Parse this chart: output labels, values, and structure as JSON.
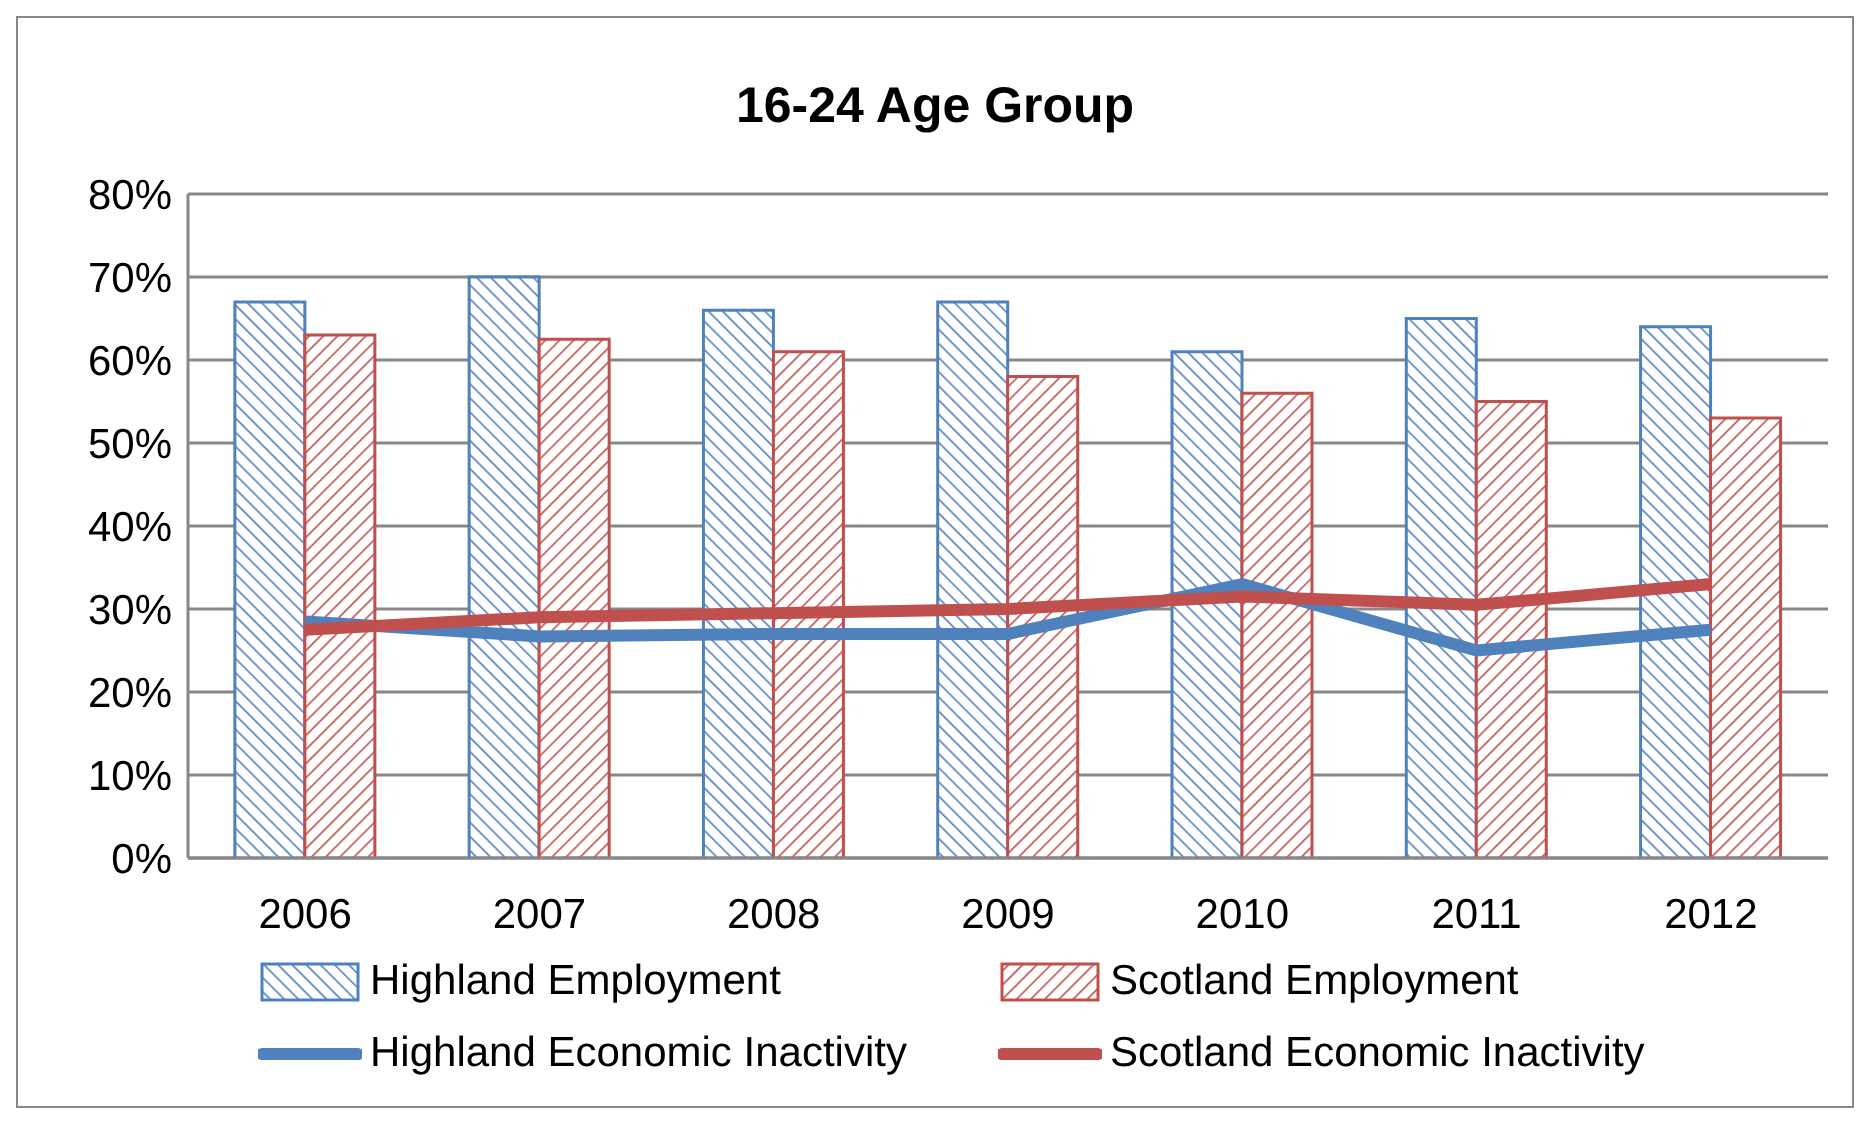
{
  "chart_data": {
    "type": "bar",
    "title": "16-24 Age Group",
    "categories": [
      "2006",
      "2007",
      "2008",
      "2009",
      "2010",
      "2011",
      "2012"
    ],
    "ylim": [
      0,
      0.8
    ],
    "yticks": [
      {
        "value": 0,
        "label": "0%"
      },
      {
        "value": 0.1,
        "label": "10%"
      },
      {
        "value": 0.2,
        "label": "20%"
      },
      {
        "value": 0.3,
        "label": "30%"
      },
      {
        "value": 0.4,
        "label": "40%"
      },
      {
        "value": 0.5,
        "label": "50%"
      },
      {
        "value": 0.6,
        "label": "60%"
      },
      {
        "value": 0.7,
        "label": "70%"
      },
      {
        "value": 0.8,
        "label": "80%"
      }
    ],
    "grid": "y",
    "legend": "bottom",
    "series": [
      {
        "name": "Highland Employment",
        "color": "#4f81bd",
        "values": [
          0.67,
          0.7,
          0.66,
          0.67,
          0.61,
          0.65,
          0.64
        ]
      },
      {
        "name": "Scotland Employment",
        "color": "#c0504d",
        "values": [
          0.63,
          0.625,
          0.61,
          0.58,
          0.56,
          0.55,
          0.53
        ]
      },
      {
        "name": "Highland Economic Inactivity",
        "type": "line",
        "color": "#4f81bd",
        "values": [
          0.285,
          0.267,
          0.27,
          0.27,
          0.33,
          0.25,
          0.275
        ]
      },
      {
        "name": "Scotland Economic Inactivity",
        "type": "line",
        "color": "#c0504d",
        "values": [
          0.275,
          0.29,
          0.295,
          0.3,
          0.315,
          0.305,
          0.33
        ]
      }
    ]
  }
}
